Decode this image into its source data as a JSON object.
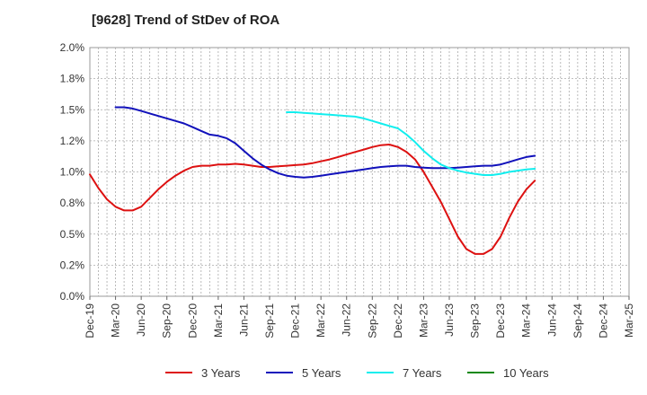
{
  "chart_data": {
    "type": "line",
    "title": "[9628]  Trend of StDev of ROA",
    "xlabel": "",
    "ylabel": "",
    "ylim": [
      0,
      2.0
    ],
    "y_ticks": [
      "0.0%",
      "0.2%",
      "0.5%",
      "0.8%",
      "1.0%",
      "1.2%",
      "1.5%",
      "1.8%",
      "2.0%"
    ],
    "x_ticks": [
      "Dec-19",
      "Mar-20",
      "Jun-20",
      "Sep-20",
      "Dec-20",
      "Mar-21",
      "Jun-21",
      "Sep-21",
      "Dec-21",
      "Mar-22",
      "Jun-22",
      "Sep-22",
      "Dec-22",
      "Mar-23",
      "Jun-23",
      "Sep-23",
      "Dec-23",
      "Mar-24",
      "Jun-24",
      "Sep-24",
      "Dec-24",
      "Mar-25"
    ],
    "grid": true,
    "legend_position": "bottom",
    "series": [
      {
        "name": "3 Years",
        "color": "#dd1111",
        "points": [
          [
            0,
            0.98
          ],
          [
            1,
            0.87
          ],
          [
            2,
            0.78
          ],
          [
            3,
            0.72
          ],
          [
            4,
            0.69
          ],
          [
            5,
            0.69
          ],
          [
            6,
            0.72
          ],
          [
            7,
            0.79
          ],
          [
            8,
            0.86
          ],
          [
            9,
            0.92
          ],
          [
            10,
            0.97
          ],
          [
            11,
            1.01
          ],
          [
            12,
            1.04
          ],
          [
            13,
            1.05
          ],
          [
            14,
            1.05
          ],
          [
            15,
            1.06
          ],
          [
            16,
            1.06
          ],
          [
            17,
            1.065
          ],
          [
            18,
            1.06
          ],
          [
            19,
            1.05
          ],
          [
            20,
            1.04
          ],
          [
            21,
            1.04
          ],
          [
            22,
            1.045
          ],
          [
            23,
            1.05
          ],
          [
            24,
            1.055
          ],
          [
            25,
            1.06
          ],
          [
            26,
            1.07
          ],
          [
            27,
            1.085
          ],
          [
            28,
            1.1
          ],
          [
            29,
            1.12
          ],
          [
            30,
            1.14
          ],
          [
            31,
            1.16
          ],
          [
            32,
            1.18
          ],
          [
            33,
            1.2
          ],
          [
            34,
            1.215
          ],
          [
            35,
            1.22
          ],
          [
            36,
            1.2
          ],
          [
            37,
            1.16
          ],
          [
            38,
            1.1
          ],
          [
            39,
            1.0
          ],
          [
            40,
            0.88
          ],
          [
            41,
            0.76
          ],
          [
            42,
            0.62
          ],
          [
            43,
            0.48
          ],
          [
            44,
            0.38
          ],
          [
            45,
            0.34
          ],
          [
            46,
            0.34
          ],
          [
            47,
            0.38
          ],
          [
            48,
            0.48
          ],
          [
            49,
            0.63
          ],
          [
            50,
            0.76
          ],
          [
            51,
            0.86
          ],
          [
            52,
            0.93
          ]
        ]
      },
      {
        "name": "5 Years",
        "color": "#1111bb",
        "points": [
          [
            3,
            1.52
          ],
          [
            4,
            1.52
          ],
          [
            5,
            1.51
          ],
          [
            6,
            1.49
          ],
          [
            7,
            1.47
          ],
          [
            8,
            1.45
          ],
          [
            9,
            1.43
          ],
          [
            10,
            1.41
          ],
          [
            11,
            1.39
          ],
          [
            12,
            1.36
          ],
          [
            13,
            1.33
          ],
          [
            14,
            1.3
          ],
          [
            15,
            1.29
          ],
          [
            16,
            1.27
          ],
          [
            17,
            1.23
          ],
          [
            18,
            1.17
          ],
          [
            19,
            1.11
          ],
          [
            20,
            1.06
          ],
          [
            21,
            1.02
          ],
          [
            22,
            0.99
          ],
          [
            23,
            0.97
          ],
          [
            24,
            0.96
          ],
          [
            25,
            0.955
          ],
          [
            26,
            0.96
          ],
          [
            27,
            0.97
          ],
          [
            28,
            0.98
          ],
          [
            29,
            0.99
          ],
          [
            30,
            1.0
          ],
          [
            31,
            1.01
          ],
          [
            32,
            1.02
          ],
          [
            33,
            1.03
          ],
          [
            34,
            1.04
          ],
          [
            35,
            1.045
          ],
          [
            36,
            1.05
          ],
          [
            37,
            1.05
          ],
          [
            38,
            1.04
          ],
          [
            39,
            1.035
          ],
          [
            40,
            1.03
          ],
          [
            41,
            1.03
          ],
          [
            42,
            1.03
          ],
          [
            43,
            1.035
          ],
          [
            44,
            1.04
          ],
          [
            45,
            1.045
          ],
          [
            46,
            1.05
          ],
          [
            47,
            1.05
          ],
          [
            48,
            1.06
          ],
          [
            49,
            1.08
          ],
          [
            50,
            1.1
          ],
          [
            51,
            1.12
          ],
          [
            52,
            1.13
          ]
        ]
      },
      {
        "name": "7 Years",
        "color": "#11eeee",
        "points": [
          [
            23,
            1.48
          ],
          [
            24,
            1.48
          ],
          [
            25,
            1.475
          ],
          [
            26,
            1.47
          ],
          [
            27,
            1.465
          ],
          [
            28,
            1.46
          ],
          [
            29,
            1.455
          ],
          [
            30,
            1.45
          ],
          [
            31,
            1.445
          ],
          [
            32,
            1.43
          ],
          [
            33,
            1.41
          ],
          [
            34,
            1.39
          ],
          [
            35,
            1.37
          ],
          [
            36,
            1.35
          ],
          [
            37,
            1.3
          ],
          [
            38,
            1.24
          ],
          [
            39,
            1.17
          ],
          [
            40,
            1.11
          ],
          [
            41,
            1.06
          ],
          [
            42,
            1.03
          ],
          [
            43,
            1.01
          ],
          [
            44,
            0.995
          ],
          [
            45,
            0.985
          ],
          [
            46,
            0.975
          ],
          [
            47,
            0.975
          ],
          [
            48,
            0.985
          ],
          [
            49,
            1.0
          ],
          [
            50,
            1.01
          ],
          [
            51,
            1.02
          ],
          [
            52,
            1.025
          ]
        ]
      },
      {
        "name": "10 Years",
        "color": "#118811",
        "points": []
      }
    ]
  }
}
